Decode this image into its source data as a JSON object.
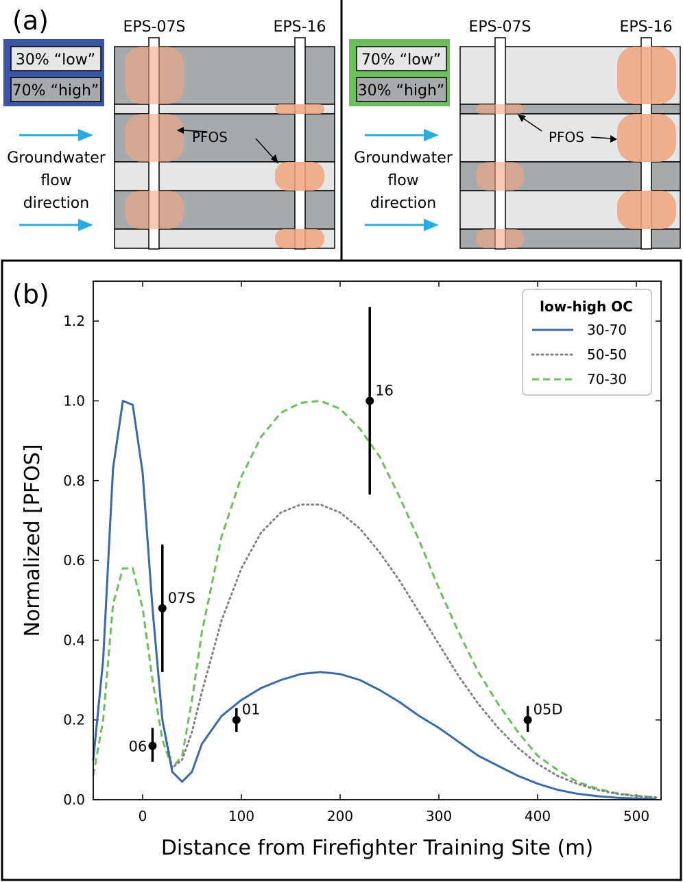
{
  "panel_a": {
    "label": "(a)",
    "left": {
      "well_labels": [
        "EPS-07S",
        "EPS-16"
      ],
      "box_low": "30% “low”",
      "box_high": "70% “high”",
      "frame_color": "#3a55a4",
      "pfos_label": "PFOS",
      "flow_label": [
        "Groundwater",
        "flow",
        "direction"
      ]
    },
    "right": {
      "well_labels": [
        "EPS-07S",
        "EPS-16"
      ],
      "box_low": "70% “low”",
      "box_high": "30% “high”",
      "frame_color": "#6cbf5b",
      "pfos_label": "PFOS",
      "flow_label": [
        "Groundwater",
        "flow",
        "direction"
      ]
    },
    "colors": {
      "high_oc": "#a7aaad",
      "low_oc": "#e4e6e8",
      "pfos": "#f0a57e",
      "arrow": "#29abe2"
    }
  },
  "chart_data": {
    "type": "line",
    "panel_label": "(b)",
    "xlabel": "Distance from Firefighter Training Site (m)",
    "ylabel": "Normalized [PFOS]",
    "xlim": [
      -50,
      525
    ],
    "ylim": [
      0,
      1.3
    ],
    "xticks": [
      0,
      100,
      200,
      300,
      400,
      500
    ],
    "yticks": [
      0.0,
      0.2,
      0.4,
      0.6,
      0.8,
      1.0,
      1.2
    ],
    "legend": {
      "title": "low-high OC",
      "placement": "top-right"
    },
    "series": [
      {
        "name": "30-70",
        "style": "solid",
        "color": "#3c6aa6",
        "x": [
          -50,
          -40,
          -30,
          -20,
          -10,
          0,
          10,
          20,
          30,
          40,
          50,
          60,
          80,
          100,
          120,
          140,
          160,
          180,
          200,
          220,
          240,
          260,
          280,
          300,
          320,
          340,
          360,
          380,
          400,
          420,
          440,
          460,
          480,
          500,
          520
        ],
        "y": [
          0.1,
          0.35,
          0.83,
          1.0,
          0.99,
          0.82,
          0.48,
          0.2,
          0.07,
          0.045,
          0.07,
          0.14,
          0.21,
          0.25,
          0.28,
          0.3,
          0.315,
          0.32,
          0.315,
          0.3,
          0.275,
          0.245,
          0.21,
          0.18,
          0.145,
          0.11,
          0.085,
          0.06,
          0.04,
          0.025,
          0.015,
          0.009,
          0.005,
          0.003,
          0.002
        ]
      },
      {
        "name": "50-50",
        "style": "dotted",
        "color": "#808080",
        "x": [
          -50,
          -40,
          -30,
          -20,
          -10,
          0,
          10,
          20,
          30,
          40,
          50,
          60,
          80,
          100,
          120,
          140,
          160,
          180,
          200,
          220,
          240,
          260,
          280,
          300,
          320,
          340,
          360,
          380,
          400,
          420,
          440,
          460,
          480,
          500,
          520
        ],
        "y": [
          0.1,
          0.35,
          0.83,
          1.0,
          0.99,
          0.82,
          0.48,
          0.2,
          0.08,
          0.1,
          0.17,
          0.27,
          0.45,
          0.58,
          0.67,
          0.72,
          0.74,
          0.74,
          0.72,
          0.68,
          0.62,
          0.55,
          0.47,
          0.39,
          0.31,
          0.24,
          0.18,
          0.13,
          0.09,
          0.06,
          0.04,
          0.025,
          0.015,
          0.009,
          0.006
        ]
      },
      {
        "name": "70-30",
        "style": "dashed",
        "color": "#6cbf5b",
        "x": [
          -50,
          -40,
          -30,
          -20,
          -10,
          0,
          10,
          20,
          30,
          40,
          50,
          60,
          80,
          100,
          120,
          140,
          160,
          180,
          200,
          220,
          240,
          260,
          280,
          300,
          320,
          340,
          360,
          380,
          400,
          420,
          440,
          460,
          480,
          500,
          520
        ],
        "y": [
          0.06,
          0.2,
          0.49,
          0.58,
          0.58,
          0.48,
          0.3,
          0.15,
          0.08,
          0.11,
          0.25,
          0.42,
          0.66,
          0.81,
          0.91,
          0.97,
          0.995,
          1.0,
          0.98,
          0.93,
          0.86,
          0.76,
          0.65,
          0.53,
          0.42,
          0.32,
          0.24,
          0.17,
          0.11,
          0.075,
          0.045,
          0.028,
          0.016,
          0.01,
          0.006
        ]
      }
    ],
    "points": [
      {
        "label": "06",
        "x": 10,
        "y": 0.135,
        "err": [
          0.095,
          0.18
        ]
      },
      {
        "label": "07S",
        "x": 20,
        "y": 0.48,
        "err": [
          0.32,
          0.64
        ]
      },
      {
        "label": "01",
        "x": 95,
        "y": 0.2,
        "err": [
          0.17,
          0.23
        ]
      },
      {
        "label": "16",
        "x": 230,
        "y": 1.0,
        "err": [
          0.765,
          1.235
        ]
      },
      {
        "label": "05D",
        "x": 390,
        "y": 0.2,
        "err": [
          0.17,
          0.235
        ]
      }
    ]
  }
}
